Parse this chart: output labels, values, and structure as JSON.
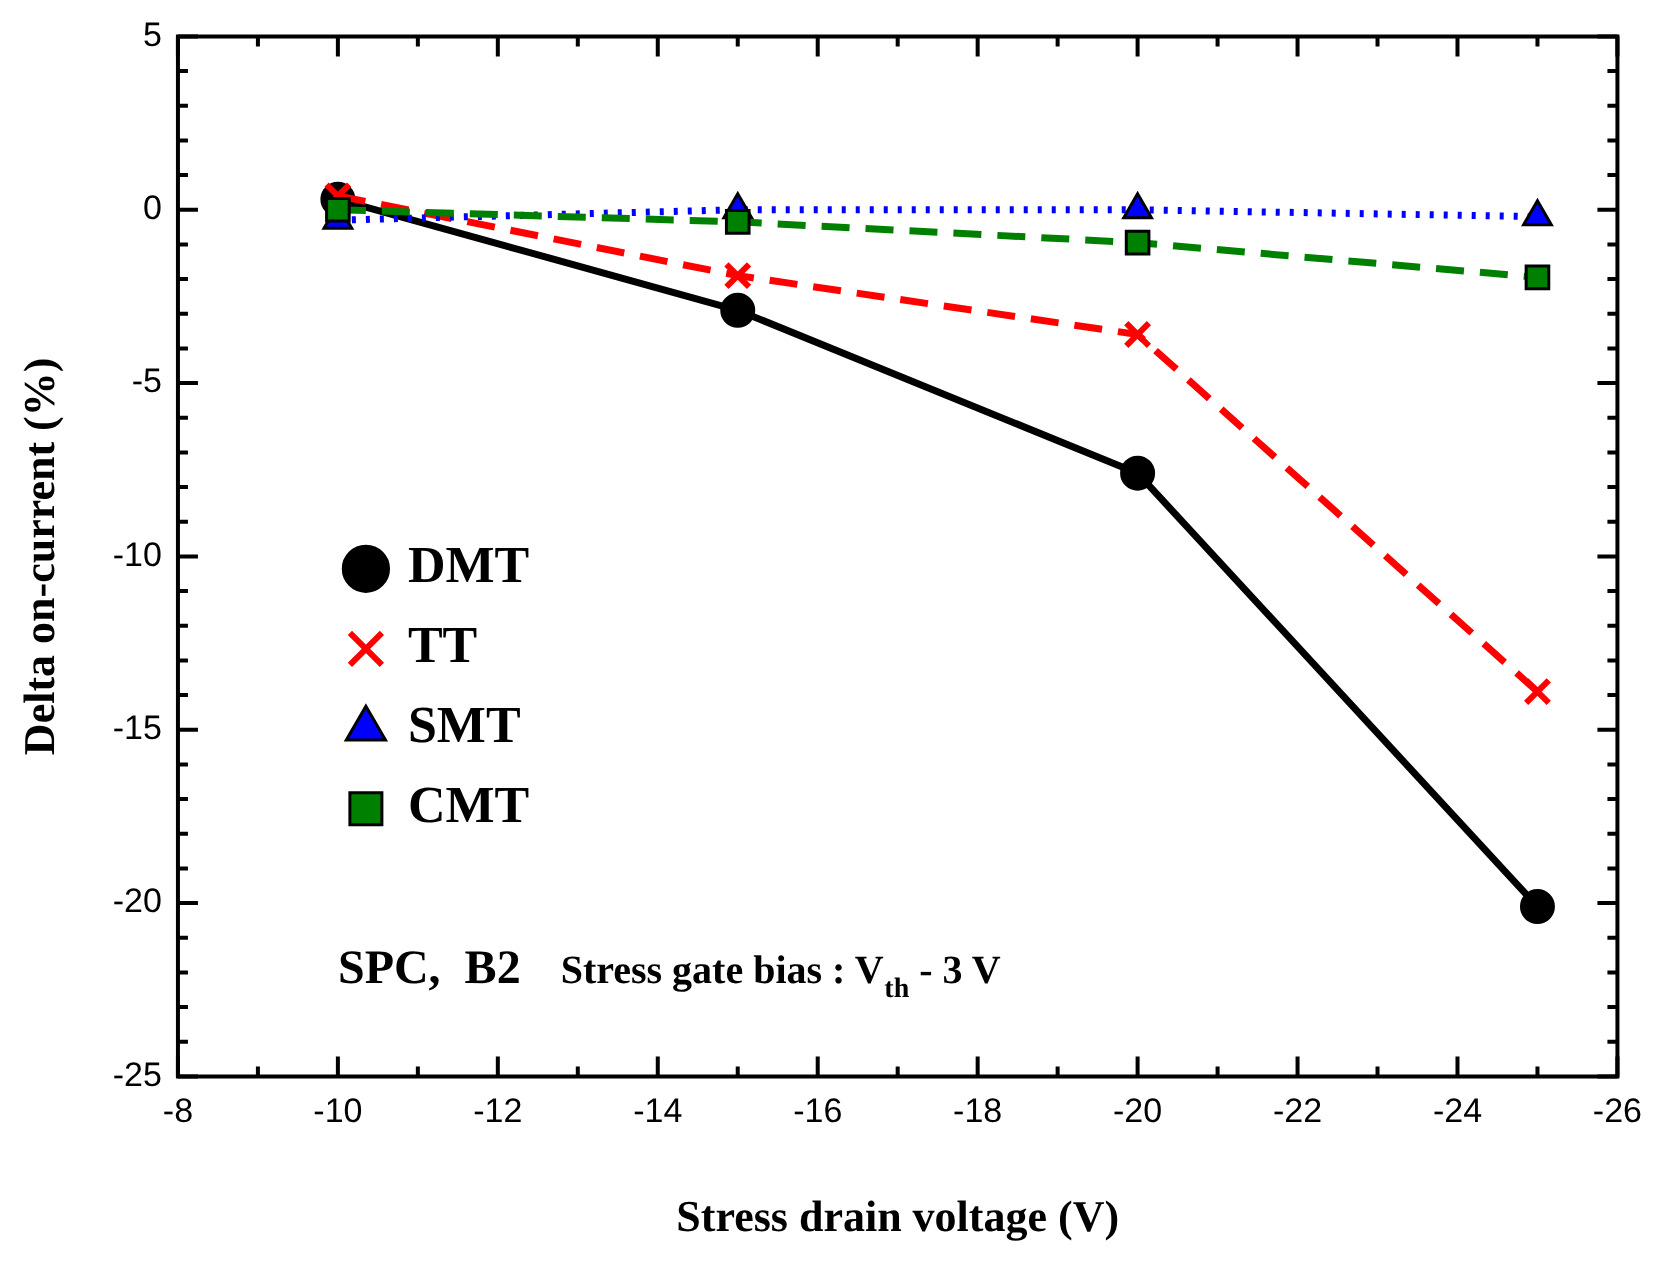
{
  "chart_data": {
    "type": "line",
    "xlabel": "Stress drain voltage (V)",
    "ylabel": "Delta on-current (%)",
    "x": [
      -10,
      -15,
      -20,
      -25
    ],
    "xlim": [
      -8,
      -26
    ],
    "xticks": [
      -8,
      -10,
      -12,
      -14,
      -16,
      -18,
      -20,
      -22,
      -24,
      -26
    ],
    "ylim": [
      -25,
      5
    ],
    "yticks": [
      -25,
      -20,
      -15,
      -10,
      -5,
      0,
      5
    ],
    "grid": false,
    "legend": "left",
    "series": [
      {
        "name": "DMT",
        "color": "#000000",
        "values": [
          0.3,
          -2.9,
          -7.6,
          -20.1
        ],
        "marker": "circle",
        "line_style": "solid"
      },
      {
        "name": "TT",
        "color": "#ff0000",
        "values": [
          0.4,
          -1.9,
          -3.6,
          -13.9
        ],
        "marker": "cross",
        "line_style": "dashed"
      },
      {
        "name": "SMT",
        "color": "#0000ff",
        "values": [
          -0.3,
          0,
          0,
          -0.2
        ],
        "marker": "triangle",
        "line_style": "dotted"
      },
      {
        "name": "CMT",
        "color": "#008000",
        "values": [
          0,
          -0.35,
          -0.95,
          -1.95
        ],
        "marker": "square",
        "line_style": "dashed"
      }
    ],
    "annotations": [
      "SPC,  B2",
      "Stress gate bias : V$_{th}$ - 3 V"
    ]
  }
}
